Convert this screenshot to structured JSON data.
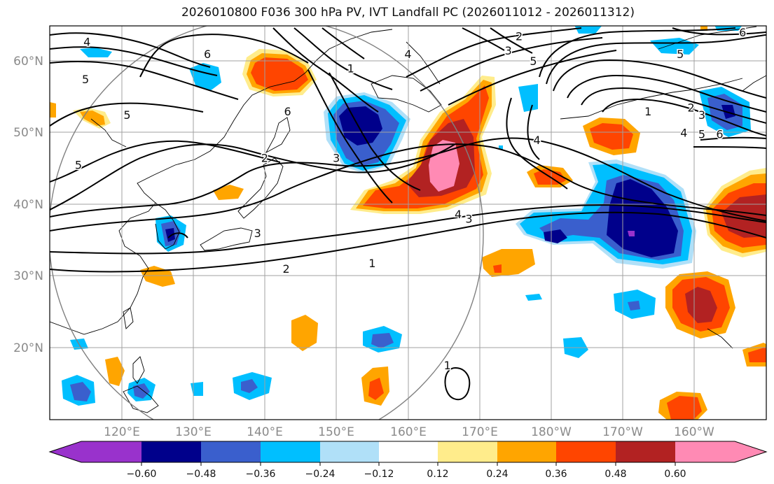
{
  "title": "2026010800 F036 300 hPa PV, IVT Landfall PC (2026011012 - 2026011312)",
  "lon_ticks": [
    "120°E",
    "130°E",
    "140°E",
    "150°E",
    "160°E",
    "170°E",
    "180°W",
    "170°W",
    "160°W"
  ],
  "lat_ticks": [
    "60°N",
    "50°N",
    "40°N",
    "30°N",
    "20°N"
  ],
  "map_extent": {
    "lon_min": 110,
    "lon_max": 210,
    "lat_min": 10,
    "lat_max": 65
  },
  "colorbar": {
    "ticks": [
      "−0.60",
      "−0.48",
      "−0.36",
      "−0.24",
      "−0.12",
      "0.12",
      "0.24",
      "0.36",
      "0.48",
      "0.60"
    ],
    "colors": [
      "#9932cc",
      "#00008b",
      "#3a5fcd",
      "#00bfff",
      "#b0e0f8",
      "#ffffff",
      "#ffec8b",
      "#ffa500",
      "#ff4500",
      "#b22222",
      "#ff8ab4"
    ]
  },
  "contour_labels": [
    {
      "text": "4",
      "lon": 115.2,
      "lat": 62.7
    },
    {
      "text": "5",
      "lon": 115.0,
      "lat": 57.5
    },
    {
      "text": "5",
      "lon": 114.0,
      "lat": 45.5
    },
    {
      "text": "5",
      "lon": 120.8,
      "lat": 52.5
    },
    {
      "text": "6",
      "lon": 132.0,
      "lat": 61.0
    },
    {
      "text": "2",
      "lon": 140.0,
      "lat": 46.5
    },
    {
      "text": "3",
      "lon": 139.0,
      "lat": 36.0
    },
    {
      "text": "2",
      "lon": 143.0,
      "lat": 31.0
    },
    {
      "text": "1",
      "lon": 155.0,
      "lat": 31.8
    },
    {
      "text": "3",
      "lon": 150.0,
      "lat": 46.5
    },
    {
      "text": "4",
      "lon": 167.0,
      "lat": 38.6
    },
    {
      "text": "3",
      "lon": 168.5,
      "lat": 38.0
    },
    {
      "text": "1",
      "lon": 165.5,
      "lat": 17.5
    },
    {
      "text": "4",
      "lon": 178.0,
      "lat": 49.0
    },
    {
      "text": "1",
      "lon": 152.0,
      "lat": 59.0
    },
    {
      "text": "2",
      "lon": 175.5,
      "lat": 63.5
    },
    {
      "text": "3",
      "lon": 174.0,
      "lat": 61.5
    },
    {
      "text": "4",
      "lon": 160.0,
      "lat": 61.0
    },
    {
      "text": "5",
      "lon": 177.5,
      "lat": 60.0
    },
    {
      "text": "6",
      "lon": 206.7,
      "lat": 64.0
    },
    {
      "text": "5",
      "lon": 198.0,
      "lat": 61.0
    },
    {
      "text": "1",
      "lon": 193.5,
      "lat": 53.0
    },
    {
      "text": "2",
      "lon": 199.5,
      "lat": 53.5
    },
    {
      "text": "3",
      "lon": 201.0,
      "lat": 52.5
    },
    {
      "text": "4",
      "lon": 198.5,
      "lat": 50.0
    },
    {
      "text": "5",
      "lon": 201.0,
      "lat": 49.8
    },
    {
      "text": "6",
      "lon": 203.5,
      "lat": 49.8
    },
    {
      "text": "6",
      "lon": 143.2,
      "lat": 53.0
    }
  ]
}
